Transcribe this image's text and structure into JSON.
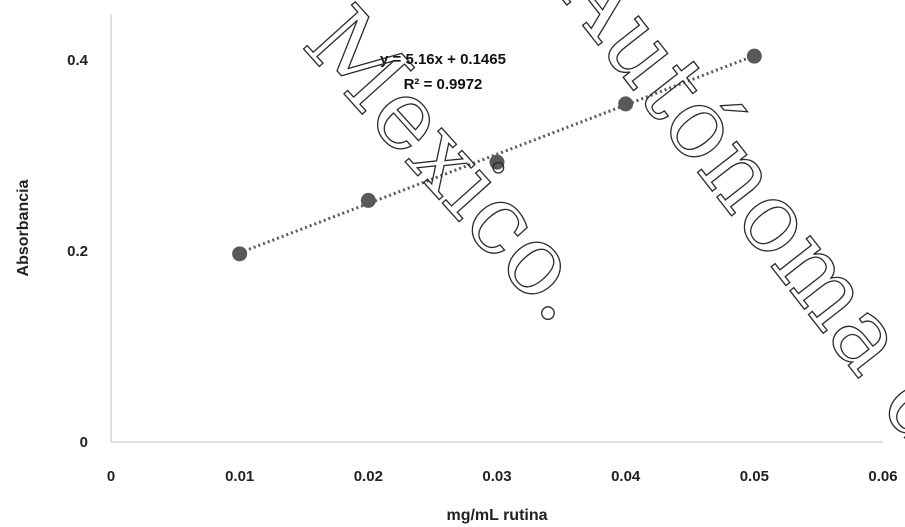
{
  "chart_data": {
    "type": "scatter",
    "xlabel": "mg/mL rutina",
    "ylabel": "Absorbancia",
    "xlim": [
      0,
      0.06
    ],
    "ylim": [
      0,
      0.4
    ],
    "x_ticks": [
      "0",
      "0.01",
      "0.02",
      "0.03",
      "0.04",
      "0.05",
      "0.06"
    ],
    "y_ticks": [
      "0",
      "0.2",
      "0.4"
    ],
    "points": [
      {
        "x": 0.01,
        "y": 0.197
      },
      {
        "x": 0.02,
        "y": 0.253
      },
      {
        "x": 0.03,
        "y": 0.293
      },
      {
        "x": 0.04,
        "y": 0.354
      },
      {
        "x": 0.05,
        "y": 0.404
      }
    ],
    "trendline": {
      "slope": 5.16,
      "intercept": 0.1465,
      "equation": "y = 5.16x + 0.1465",
      "r_squared": "R² = 0.9972",
      "style": "dotted"
    },
    "marker_color": "#595959",
    "grid": false
  },
  "watermark": {
    "lines": [
      "Mexico.",
      "Autónoma de"
    ]
  }
}
